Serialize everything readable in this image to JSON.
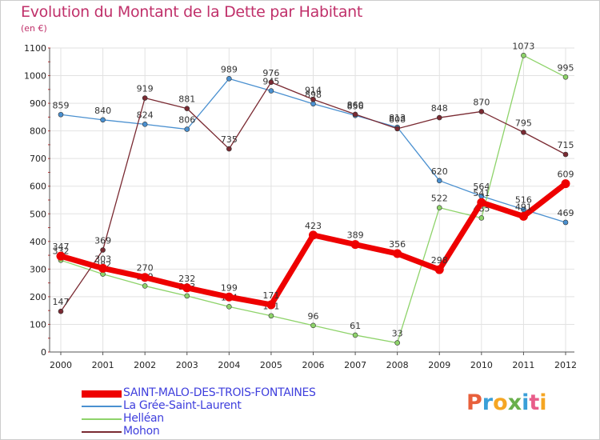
{
  "header": {
    "title": "Evolution du Montant de la Dette par Habitant",
    "subtitle": "(en €)"
  },
  "logo": {
    "text": "Proxiti",
    "letter_colors": [
      "#e8603c",
      "#3a9fd8",
      "#f5a623",
      "#6ab04c",
      "#3a9fd8",
      "#e85d8a",
      "#f5a623"
    ]
  },
  "chart_data": {
    "type": "line",
    "x": [
      "2000",
      "2001",
      "2002",
      "2003",
      "2004",
      "2005",
      "2006",
      "2007",
      "2008",
      "2009",
      "2010",
      "2011",
      "2012"
    ],
    "ylim": [
      0,
      1100
    ],
    "yticks": [
      "0",
      "100",
      "200",
      "300",
      "400",
      "500",
      "600",
      "700",
      "800",
      "900",
      "1000",
      "1100"
    ],
    "grid": true,
    "legend_position": "bottom-left",
    "series": [
      {
        "name": "La Grée-Saint-Laurent",
        "color": "#4a90d0",
        "values": [
          859,
          840,
          824,
          806,
          989,
          945,
          898,
          856,
          813,
          620,
          564,
          516,
          469
        ],
        "labels": [
          "859",
          "840",
          "824",
          "806",
          "989",
          "945",
          "898",
          "856",
          "813",
          "620",
          "564",
          "516",
          "469"
        ]
      },
      {
        "name": "Helléan",
        "color": "#8ed36a",
        "values": [
          332,
          282,
          239,
          203,
          164,
          131,
          96,
          61,
          33,
          522,
          485,
          1073,
          995
        ],
        "labels": [
          "332",
          "282",
          "239",
          "203",
          "164",
          "131",
          "96",
          "61",
          "33",
          "522",
          "485",
          "1073",
          "995"
        ]
      },
      {
        "name": "Mohon",
        "color": "#7a2a32",
        "values": [
          147,
          369,
          919,
          881,
          735,
          976,
          914,
          860,
          808,
          848,
          870,
          795,
          715
        ],
        "labels": [
          "147",
          "369",
          "919",
          "881",
          "735",
          "976",
          "914",
          "860",
          "808",
          "848",
          "870",
          "795",
          "715"
        ]
      },
      {
        "name": "SAINT-MALO-DES-TROIS-FONTAINES",
        "color": "#ee0000",
        "values": [
          347,
          303,
          270,
          232,
          199,
          171,
          423,
          389,
          356,
          298,
          541,
          491,
          609
        ],
        "labels": [
          "347",
          "303",
          "270",
          "232",
          "199",
          "171",
          "423",
          "389",
          "356",
          "298",
          "541",
          "491",
          "609"
        ]
      }
    ],
    "legend": [
      {
        "name": "SAINT-MALO-DES-TROIS-FONTAINES",
        "color": "#ee0000",
        "text_color": "#3f3fdd"
      },
      {
        "name": "La Grée-Saint-Laurent",
        "color": "#4a90d0",
        "text_color": "#3f3fdd"
      },
      {
        "name": "Helléan",
        "color": "#8ed36a",
        "text_color": "#3f3fdd"
      },
      {
        "name": "Mohon",
        "color": "#7a2a32",
        "text_color": "#3f3fdd"
      }
    ]
  }
}
